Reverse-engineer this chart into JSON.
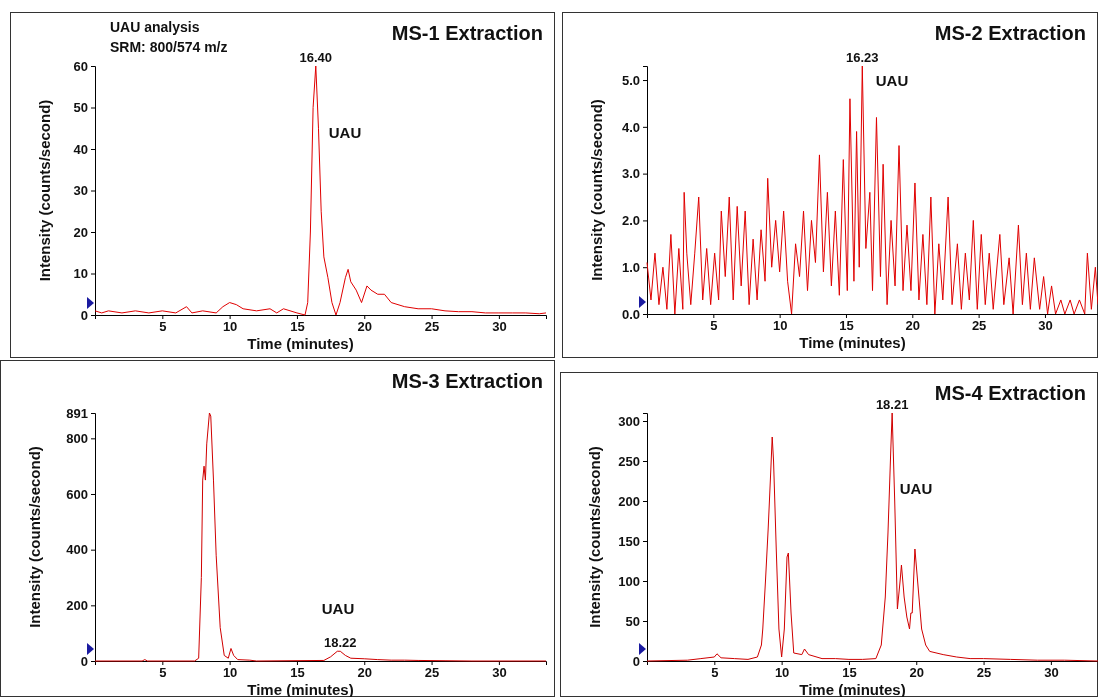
{
  "chart_data": [
    {
      "type": "line",
      "title": "MS-1 Extraction",
      "xlabel": "Time (minutes)",
      "ylabel": "Intensity (counts/second)",
      "xlim": [
        0,
        33.5
      ],
      "ylim": [
        0,
        60
      ],
      "xticks": [
        5,
        10,
        15,
        20,
        25,
        30
      ],
      "yticks": [
        0,
        10,
        20,
        30,
        40,
        50,
        60
      ],
      "marker": "none",
      "line_style": "solid",
      "grid": false,
      "annotations": [
        "UAU analysis",
        "SRM: 800/574 m/z",
        {
          "text": "16.40",
          "x": 16.4,
          "y": 60
        },
        "UAU"
      ],
      "series": [
        {
          "color": "#e00000",
          "x": [
            0,
            0.5,
            1,
            2,
            3,
            4,
            5,
            6,
            6.8,
            7.2,
            8,
            9,
            9.5,
            10,
            10.5,
            11,
            12,
            13,
            13.5,
            14,
            15,
            15.6,
            15.8,
            16,
            16.2,
            16.4,
            16.6,
            16.8,
            17,
            17.3,
            17.6,
            17.9,
            18.2,
            18.6,
            18.8,
            19,
            19.4,
            19.8,
            20.2,
            20.5,
            21,
            21.5,
            22,
            23,
            24,
            25,
            26,
            27,
            28,
            29,
            30,
            31,
            32,
            33,
            33.5
          ],
          "values": [
            1,
            0.5,
            1,
            0.5,
            1,
            0.5,
            1,
            0.5,
            2,
            0.5,
            1,
            0.5,
            2,
            3,
            2.5,
            1.5,
            1,
            1.5,
            0.5,
            1.5,
            0.5,
            0,
            3,
            20,
            50,
            60,
            45,
            25,
            14,
            9,
            3,
            0,
            3,
            9,
            11,
            8,
            6,
            3,
            7,
            6,
            5,
            5,
            3,
            2,
            1.5,
            1.5,
            1,
            0.8,
            0.8,
            0.5,
            0.5,
            0.5,
            0.5,
            0.3,
            0.5
          ]
        }
      ]
    },
    {
      "type": "line",
      "title": "MS-2 Extraction",
      "xlabel": "Time (minutes)",
      "ylabel": "Intensity (counts/second)",
      "xlim": [
        0,
        34
      ],
      "ylim": [
        0,
        5.3
      ],
      "xticks": [
        5,
        10,
        15,
        20,
        25,
        30
      ],
      "yticks": [
        {
          "value": 0,
          "label": "0.0"
        },
        {
          "value": 1,
          "label": "1.0"
        },
        {
          "value": 2,
          "label": "2.0"
        },
        {
          "value": 3,
          "label": "3.0"
        },
        {
          "value": 4,
          "label": "4.0"
        },
        {
          "value": 5,
          "label": "5.0"
        }
      ],
      "marker": "none",
      "line_style": "solid",
      "grid": false,
      "annotations": [
        {
          "text": "16.23",
          "x": 16.23,
          "y": 5.3
        },
        "UAU"
      ],
      "series": [
        {
          "color": "#e00000",
          "x": [
            0,
            0.3,
            0.6,
            0.9,
            1.2,
            1.5,
            1.8,
            2.1,
            2.4,
            2.7,
            2.8,
            3,
            3.3,
            3.6,
            3.9,
            4.2,
            4.5,
            4.8,
            5.1,
            5.4,
            5.6,
            5.9,
            6.2,
            6.5,
            6.8,
            7.1,
            7.4,
            7.7,
            8,
            8.3,
            8.6,
            8.9,
            9.1,
            9.4,
            9.7,
            10,
            10.3,
            10.6,
            10.9,
            11.2,
            11.5,
            11.8,
            12.1,
            12.4,
            12.7,
            13,
            13.3,
            13.6,
            13.9,
            14.2,
            14.5,
            14.8,
            15.1,
            15.3,
            15.6,
            15.8,
            16,
            16.23,
            16.5,
            16.8,
            17,
            17.3,
            17.6,
            17.8,
            18.1,
            18.4,
            18.7,
            19,
            19.3,
            19.6,
            19.9,
            20.2,
            20.5,
            20.8,
            21.1,
            21.4,
            21.7,
            22,
            22.3,
            22.7,
            23,
            23.4,
            23.7,
            24,
            24.3,
            24.6,
            24.9,
            25.2,
            25.5,
            25.8,
            26.1,
            26.6,
            26.9,
            27.3,
            27.6,
            28,
            28.3,
            28.6,
            28.9,
            29.2,
            29.6,
            29.9,
            30.2,
            30.5,
            30.8,
            31.2,
            31.5,
            31.9,
            32.2,
            32.6,
            33,
            33.2,
            33.5,
            33.8,
            34
          ],
          "values": [
            1.1,
            0.3,
            1.3,
            0.2,
            1,
            0.1,
            1.7,
            0,
            1.4,
            0.1,
            2.6,
            1.3,
            0.2,
            1.3,
            2.5,
            0.3,
            1.4,
            0.2,
            1.3,
            0.3,
            2.2,
            0.8,
            2.5,
            0.3,
            2.3,
            0.6,
            2.2,
            0.2,
            1.6,
            0.3,
            1.8,
            0.7,
            2.9,
            1,
            2,
            0.9,
            2.2,
            0.7,
            0,
            1.5,
            0.8,
            2.2,
            0.5,
            2,
            1.1,
            3.4,
            0.9,
            2.6,
            0.6,
            2.2,
            0.4,
            3.3,
            0.5,
            4.6,
            0.7,
            3.9,
            1,
            5.3,
            1.4,
            2.6,
            0.5,
            4.2,
            0.8,
            3.2,
            0.2,
            2,
            0.6,
            3.6,
            0.5,
            1.9,
            0.5,
            2.8,
            0.3,
            1.7,
            0.2,
            2.5,
            0,
            1.5,
            0.3,
            2.5,
            0.2,
            1.5,
            0.1,
            1.3,
            0.3,
            2,
            0.1,
            1.7,
            0.2,
            1.3,
            0.1,
            1.7,
            0.2,
            1.2,
            0,
            1.9,
            0.2,
            1.3,
            0.1,
            1.2,
            0.1,
            0.8,
            0,
            0.6,
            0,
            0.3,
            0,
            0.3,
            0,
            0.3,
            0,
            1.3,
            0.1,
            1,
            0.2
          ]
        }
      ]
    },
    {
      "type": "line",
      "title": "MS-3 Extraction",
      "xlabel": "Time (minutes)",
      "ylabel": "Intensity (counts/second)",
      "xlim": [
        0,
        33.5
      ],
      "ylim": [
        0,
        891
      ],
      "xticks": [
        5,
        10,
        15,
        20,
        25,
        30
      ],
      "yticks": [
        0,
        200,
        400,
        600,
        800,
        891
      ],
      "marker": "none",
      "line_style": "solid",
      "grid": false,
      "annotations": [
        {
          "text": "18.22",
          "x": 18.22,
          "y": 35
        },
        "UAU"
      ],
      "series": [
        {
          "color": "#d00000",
          "x": [
            0,
            3.5,
            3.7,
            3.9,
            7.4,
            7.7,
            7.9,
            8,
            8.1,
            8.2,
            8.3,
            8.5,
            8.6,
            8.8,
            9,
            9.3,
            9.6,
            9.9,
            10.1,
            10.3,
            10.6,
            11.5,
            12,
            17,
            17.5,
            18,
            18.22,
            18.6,
            19,
            20,
            21,
            22,
            23,
            24,
            26,
            28,
            33.5
          ],
          "values": [
            0,
            0,
            5,
            0,
            0,
            10,
            300,
            650,
            700,
            650,
            780,
            891,
            880,
            650,
            380,
            120,
            20,
            10,
            45,
            20,
            5,
            3,
            0,
            2,
            15,
            35,
            35,
            20,
            10,
            8,
            5,
            3,
            3,
            2,
            1,
            0,
            0
          ]
        }
      ]
    },
    {
      "type": "line",
      "title": "MS-4 Extraction",
      "xlabel": "Time (minutes)",
      "ylabel": "Intensity (counts/second)",
      "xlim": [
        0,
        33.5
      ],
      "ylim": [
        0,
        310
      ],
      "xticks": [
        5,
        10,
        15,
        20,
        25,
        30
      ],
      "yticks": [
        0,
        50,
        100,
        150,
        200,
        250,
        300
      ],
      "marker": "none",
      "line_style": "solid",
      "grid": false,
      "annotations": [
        {
          "text": "18.21",
          "x": 18.21,
          "y": 310
        },
        "UAU"
      ],
      "series": [
        {
          "color": "#d00000",
          "x": [
            0,
            3,
            4,
            5,
            5.2,
            5.5,
            6.5,
            7.5,
            8.2,
            8.5,
            8.6,
            8.8,
            9,
            9.2,
            9.3,
            9.4,
            9.6,
            9.8,
            10,
            10.2,
            10.4,
            10.5,
            10.7,
            10.9,
            11.5,
            11.7,
            12,
            13,
            14,
            15,
            16,
            17,
            17.4,
            17.7,
            17.9,
            18.1,
            18.21,
            18.4,
            18.6,
            18.8,
            18.9,
            19.1,
            19.3,
            19.5,
            19.6,
            19.7,
            19.9,
            20.1,
            20.4,
            20.7,
            21,
            22,
            23,
            24,
            25,
            27,
            29,
            31,
            33.5
          ],
          "values": [
            0,
            1,
            3,
            5,
            9,
            4,
            3,
            2,
            5,
            20,
            40,
            100,
            165,
            240,
            280,
            250,
            140,
            40,
            5,
            40,
            130,
            135,
            60,
            10,
            8,
            15,
            8,
            3,
            3,
            2,
            2,
            3,
            20,
            80,
            160,
            260,
            310,
            200,
            65,
            100,
            120,
            80,
            55,
            40,
            60,
            60,
            140,
            100,
            40,
            20,
            12,
            8,
            5,
            3,
            3,
            2,
            1,
            1,
            0
          ]
        }
      ]
    }
  ]
}
